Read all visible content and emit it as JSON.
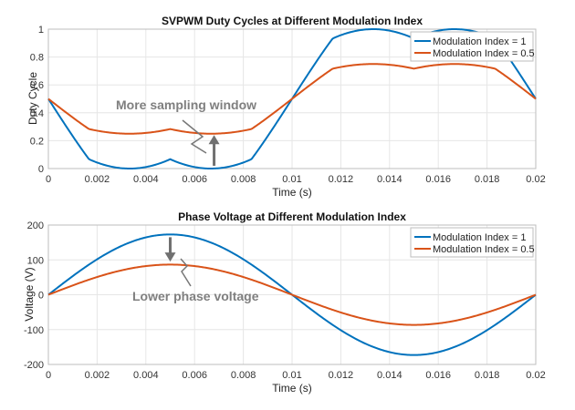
{
  "chart_data": [
    {
      "type": "line",
      "title": "SVPWM Duty Cycles at Different Modulation Index",
      "xlabel": "Time (s)",
      "ylabel": "Duty Cycle",
      "xlim": [
        0,
        0.02
      ],
      "ylim": [
        0,
        1
      ],
      "xticks": [
        0,
        0.002,
        0.004,
        0.006,
        0.008,
        0.01,
        0.012,
        0.014,
        0.016,
        0.018,
        0.02
      ],
      "xtick_labels": [
        "0",
        "0.002",
        "0.004",
        "0.006",
        "0.008",
        "0.01",
        "0.012",
        "0.014",
        "0.016",
        "0.018",
        "0.02"
      ],
      "yticks": [
        0,
        0.2,
        0.4,
        0.6,
        0.8,
        1
      ],
      "ytick_labels": [
        "0",
        "0.2",
        "0.4",
        "0.6",
        "0.8",
        "1"
      ],
      "grid": true,
      "legend_position": "top-right",
      "series": [
        {
          "name": "Modulation Index = 1",
          "color": "#0072BD",
          "formula": "svpwm",
          "m": 1
        },
        {
          "name": "Modulation Index = 0.5",
          "color": "#D95319",
          "formula": "svpwm",
          "m": 0.5
        }
      ],
      "annotation": {
        "text": "More sampling window",
        "arrow": "up",
        "x": 0.0068,
        "y_from": 0.02,
        "y_to": 0.24
      }
    },
    {
      "type": "line",
      "title": "Phase Voltage at Different Modulation Index",
      "xlabel": "Time (s)",
      "ylabel": "Voltage (V)",
      "xlim": [
        0,
        0.02
      ],
      "ylim": [
        -200,
        200
      ],
      "xticks": [
        0,
        0.002,
        0.004,
        0.006,
        0.008,
        0.01,
        0.012,
        0.014,
        0.016,
        0.018,
        0.02
      ],
      "xtick_labels": [
        "0",
        "0.002",
        "0.004",
        "0.006",
        "0.008",
        "0.01",
        "0.012",
        "0.014",
        "0.016",
        "0.018",
        "0.02"
      ],
      "yticks": [
        -200,
        -100,
        0,
        100,
        200
      ],
      "ytick_labels": [
        "-200",
        "-100",
        "0",
        "100",
        "200"
      ],
      "grid": true,
      "legend_position": "top-right",
      "series": [
        {
          "name": "Modulation Index = 1",
          "color": "#0072BD",
          "formula": "sine",
          "amplitude": 173
        },
        {
          "name": "Modulation Index = 0.5",
          "color": "#D95319",
          "formula": "sine",
          "amplitude": 86.5
        }
      ],
      "annotation": {
        "text": "Lower phase voltage",
        "arrow": "down",
        "x": 0.005,
        "y_from": 165,
        "y_to": 95
      }
    }
  ]
}
